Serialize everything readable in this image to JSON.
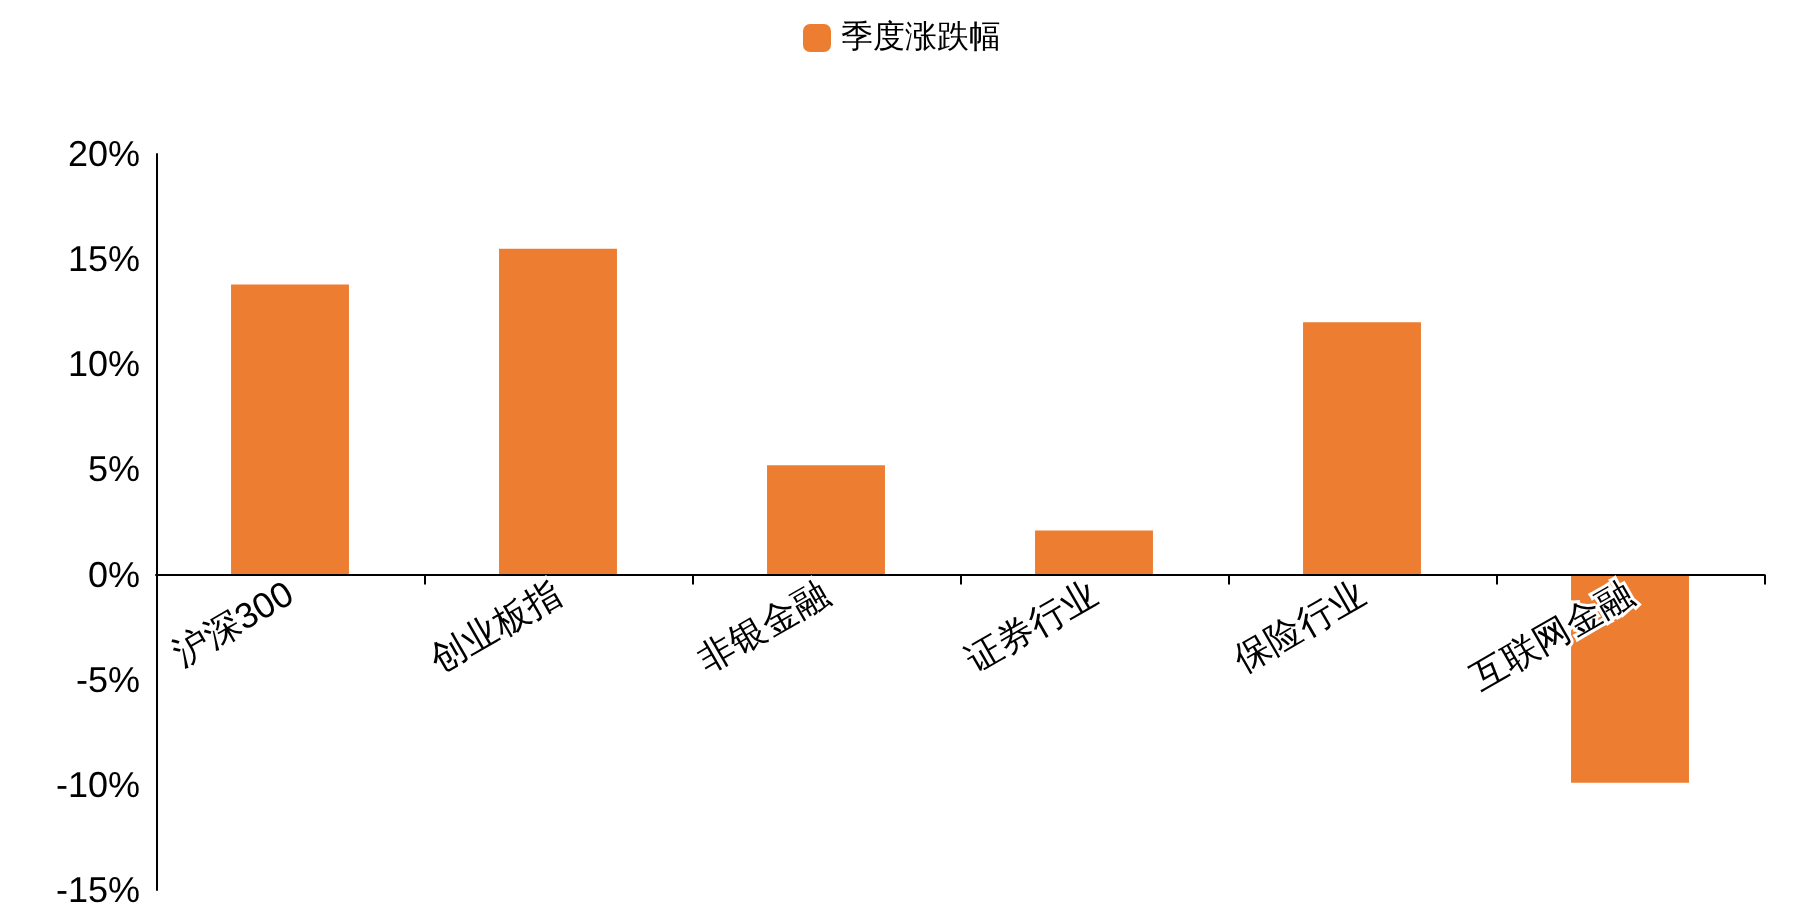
{
  "chart_data": {
    "type": "bar",
    "categories": [
      "沪深300",
      "创业板指",
      "非银金融",
      "证券行业",
      "保险行业",
      "互联网金融"
    ],
    "series": [
      {
        "name": "季度涨跌幅",
        "color": "#ed7d31",
        "values": [
          13.8,
          15.5,
          5.2,
          2.1,
          12.0,
          -9.9
        ]
      }
    ],
    "ylim": [
      -15,
      20
    ],
    "yticks": [
      {
        "value": -15,
        "label": "-15%"
      },
      {
        "value": -10,
        "label": "-10%"
      },
      {
        "value": -5,
        "label": "-5%"
      },
      {
        "value": 0,
        "label": "0%"
      },
      {
        "value": 5,
        "label": "5%"
      },
      {
        "value": 10,
        "label": "10%"
      },
      {
        "value": 15,
        "label": "15%"
      },
      {
        "value": 20,
        "label": "20%"
      }
    ],
    "legend": "top"
  }
}
